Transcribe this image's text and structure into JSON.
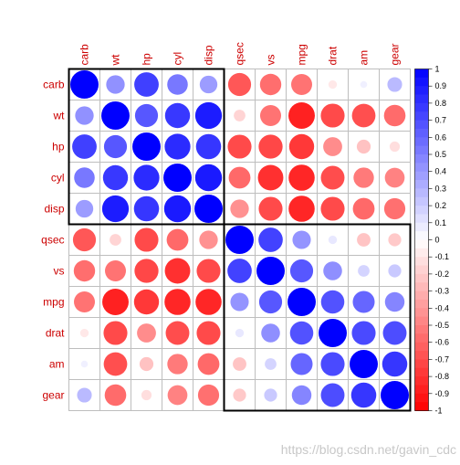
{
  "chart_data": {
    "type": "heatmap",
    "variables": [
      "carb",
      "wt",
      "hp",
      "cyl",
      "disp",
      "qsec",
      "vs",
      "mpg",
      "drat",
      "am",
      "gear"
    ],
    "matrix": [
      [
        1.0,
        0.43,
        0.75,
        0.53,
        0.39,
        -0.66,
        -0.57,
        -0.55,
        -0.09,
        0.06,
        0.27
      ],
      [
        0.43,
        1.0,
        0.66,
        0.78,
        0.89,
        -0.17,
        -0.55,
        -0.87,
        -0.71,
        -0.69,
        -0.58
      ],
      [
        0.75,
        0.66,
        1.0,
        0.83,
        0.79,
        -0.71,
        -0.72,
        -0.78,
        -0.45,
        -0.24,
        -0.13
      ],
      [
        0.53,
        0.78,
        0.83,
        1.0,
        0.9,
        -0.59,
        -0.81,
        -0.85,
        -0.7,
        -0.52,
        -0.49
      ],
      [
        0.39,
        0.89,
        0.79,
        0.9,
        1.0,
        -0.43,
        -0.71,
        -0.85,
        -0.71,
        -0.59,
        -0.56
      ],
      [
        -0.66,
        -0.17,
        -0.71,
        -0.59,
        -0.43,
        1.0,
        0.74,
        0.42,
        0.09,
        -0.23,
        -0.21
      ],
      [
        -0.57,
        -0.55,
        -0.72,
        -0.81,
        -0.71,
        0.74,
        1.0,
        0.66,
        0.44,
        0.17,
        0.21
      ],
      [
        -0.55,
        -0.87,
        -0.78,
        -0.85,
        -0.85,
        0.42,
        0.66,
        1.0,
        0.68,
        0.6,
        0.48
      ],
      [
        -0.09,
        -0.71,
        -0.45,
        -0.7,
        -0.71,
        0.09,
        0.44,
        0.68,
        1.0,
        0.71,
        0.7
      ],
      [
        0.06,
        -0.69,
        -0.24,
        -0.52,
        -0.59,
        -0.23,
        0.17,
        0.6,
        0.71,
        1.0,
        0.79
      ],
      [
        0.27,
        -0.58,
        -0.13,
        -0.49,
        -0.56,
        -0.21,
        0.21,
        0.48,
        0.7,
        0.79,
        1.0
      ]
    ],
    "clusters": [
      [
        "carb",
        "wt",
        "hp",
        "cyl",
        "disp"
      ],
      [
        "qsec",
        "vs",
        "mpg",
        "drat",
        "am",
        "gear"
      ]
    ],
    "colorbar": {
      "range": [
        -1,
        1
      ],
      "ticks": [
        "1",
        "0.9",
        "0.8",
        "0.7",
        "0.6",
        "0.5",
        "0.4",
        "0.3",
        "0.2",
        "0.1",
        "0",
        "-0.1",
        "-0.2",
        "-0.3",
        "-0.4",
        "-0.5",
        "-0.6",
        "-0.7",
        "-0.8",
        "-0.9",
        "-1"
      ]
    },
    "colors": {
      "positive": "#0000ff",
      "negative": "#ff0000",
      "neutral": "#ffffff",
      "label": "#cc0000",
      "grid": "#bebebe",
      "cluster_box": "#000000"
    },
    "marker": "circle",
    "legend_position": "right"
  },
  "watermark": "https://blog.csdn.net/gavin_cdc"
}
